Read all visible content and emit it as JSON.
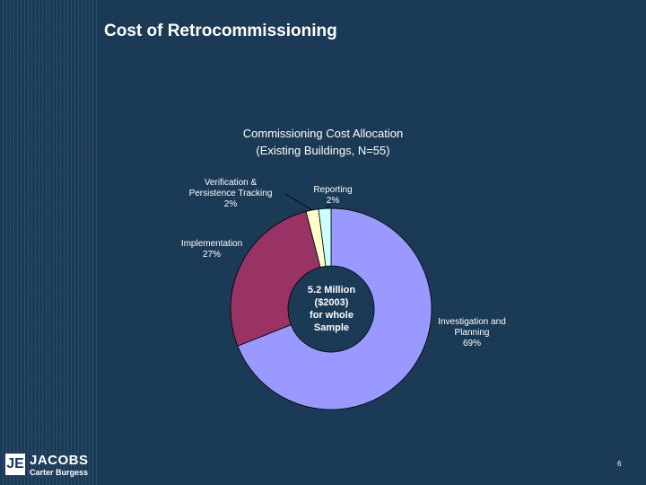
{
  "slide": {
    "title": "Cost of Retrocommissioning",
    "page_number": "6"
  },
  "logo": {
    "mark": "JE",
    "name": "JACOBS",
    "sub": "Carter Burgess"
  },
  "colors": {
    "background": "#1b3a55",
    "investigation": "#9999ff",
    "implementation": "#993366",
    "verification": "#ffffcc",
    "reporting": "#ccffff"
  },
  "chart_data": {
    "type": "pie",
    "variant": "donut",
    "title_lines": [
      "Commissioning Cost Allocation",
      "(Existing Buildings, N=55)"
    ],
    "center_label": [
      "5.2 Million",
      "($2003)",
      "for whole",
      "Sample"
    ],
    "slices": [
      {
        "name": "Investigation and Planning",
        "label_lines": [
          "Investigation and",
          "Planning",
          "69%"
        ],
        "value": 69,
        "color": "#9999ff"
      },
      {
        "name": "Implementation",
        "label_lines": [
          "Implementation",
          "27%"
        ],
        "value": 27,
        "color": "#993366"
      },
      {
        "name": "Verification & Persistence Tracking",
        "label_lines": [
          "Verification &",
          "Persistence Tracking",
          "2%"
        ],
        "value": 2,
        "color": "#ffffcc"
      },
      {
        "name": "Reporting",
        "label_lines": [
          "Reporting",
          "2%"
        ],
        "value": 2,
        "color": "#ccffff"
      }
    ]
  }
}
